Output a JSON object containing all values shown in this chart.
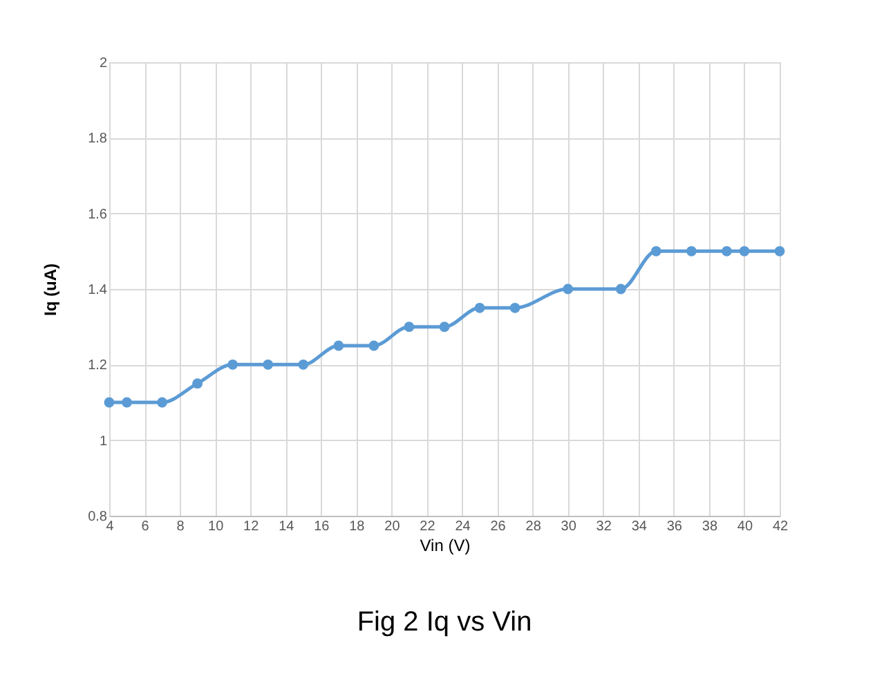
{
  "chart_data": {
    "type": "line",
    "title": "Fig 2 Iq vs Vin",
    "xlabel": "Vin (V)",
    "ylabel": "Iq (uA)",
    "x": [
      4,
      5,
      7,
      9,
      11,
      13,
      15,
      17,
      19,
      21,
      23,
      25,
      27,
      30,
      33,
      35,
      37,
      39,
      40,
      42
    ],
    "series": [
      {
        "color": "#5b9bd5",
        "values": [
          1.1,
          1.1,
          1.1,
          1.15,
          1.2,
          1.2,
          1.2,
          1.25,
          1.25,
          1.3,
          1.3,
          1.35,
          1.35,
          1.4,
          1.4,
          1.5,
          1.5,
          1.5,
          1.5,
          1.5
        ]
      }
    ],
    "xlim": [
      4,
      42
    ],
    "xticks": [
      4,
      6,
      8,
      10,
      12,
      14,
      16,
      18,
      20,
      22,
      24,
      26,
      28,
      30,
      32,
      34,
      36,
      38,
      40,
      42
    ],
    "ylim": [
      0.8,
      2
    ],
    "yticks": [
      0.8,
      1,
      1.2,
      1.4,
      1.6,
      1.8,
      2
    ],
    "grid": true,
    "marker": "circle",
    "line_style": "solid"
  }
}
